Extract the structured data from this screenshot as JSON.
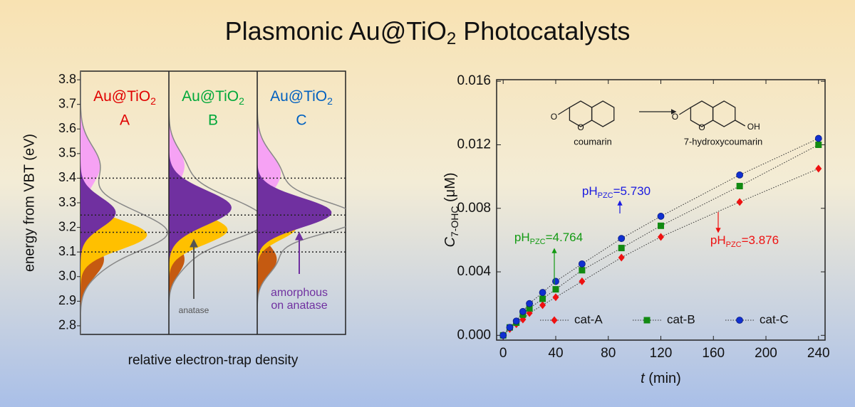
{
  "title": {
    "main": "Plasmonic Au@TiO",
    "sub": "2",
    "rest": " Photocatalysts"
  },
  "chart_data": [
    {
      "type": "density",
      "ylabel": "energy from VBT (eV)",
      "xlabel": "relative electron-trap density",
      "ylim": [
        2.765,
        3.835
      ],
      "yticks": [
        2.8,
        2.9,
        {
          "value": 3,
          "label": "3.0"
        },
        3.1,
        3.2,
        3.3,
        3.4,
        3.5,
        3.6,
        3.7,
        3.8
      ],
      "reference_lines": [
        3.1,
        3.18,
        3.25,
        3.4
      ],
      "panels": [
        {
          "label": {
            "main": "Au@TiO",
            "sub": "2"
          },
          "letter": "A",
          "color": "#e00000",
          "components": [
            {
              "color": "#f6a2f4",
              "center": 3.45,
              "width": 0.08,
              "amplitude": 0.25
            },
            {
              "color": "#c55a11",
              "center": 3.07,
              "width": 0.07,
              "amplitude": 0.3
            },
            {
              "color": "#ffc000",
              "center": 3.17,
              "width": 0.06,
              "amplitude": 0.85
            },
            {
              "color": "#7030a0",
              "center": 3.26,
              "width": 0.06,
              "amplitude": 0.45
            }
          ]
        },
        {
          "label": {
            "main": "Au@TiO",
            "sub": "2"
          },
          "letter": "B",
          "color": "#00a83a",
          "components": [
            {
              "color": "#f6a2f4",
              "center": 3.45,
              "width": 0.07,
              "amplitude": 0.2
            },
            {
              "color": "#c55a11",
              "center": 3.07,
              "width": 0.06,
              "amplitude": 0.2
            },
            {
              "color": "#ffc000",
              "center": 3.19,
              "width": 0.06,
              "amplitude": 0.75
            },
            {
              "color": "#7030a0",
              "center": 3.28,
              "width": 0.07,
              "amplitude": 0.8
            }
          ]
        },
        {
          "label": {
            "main": "Au@TiO",
            "sub": "2"
          },
          "letter": "C",
          "color": "#0060c0",
          "components": [
            {
              "color": "#f6a2f4",
              "center": 3.42,
              "width": 0.08,
              "amplitude": 0.3
            },
            {
              "color": "#c55a11",
              "center": 3.07,
              "width": 0.06,
              "amplitude": 0.25
            },
            {
              "color": "#ffc000",
              "center": 3.2,
              "width": 0.05,
              "amplitude": 0.5
            },
            {
              "color": "#7030a0",
              "center": 3.26,
              "width": 0.06,
              "amplitude": 0.95
            }
          ]
        }
      ],
      "annotations": [
        {
          "lines": [
            "anatase"
          ],
          "color": "#555555"
        },
        {
          "lines": [
            "amorphous",
            "on anatase"
          ],
          "color": "#7030a0"
        }
      ]
    },
    {
      "type": "line",
      "xlabel": {
        "var": "t",
        "rest": " (min)"
      },
      "ylabel": {
        "var": "C",
        "sub": "7-OHC",
        "rest": " (μM)"
      },
      "x": [
        0,
        5,
        10,
        15,
        20,
        30,
        40,
        60,
        90,
        120,
        180,
        240
      ],
      "xlim": [
        -5,
        245
      ],
      "xticks": [
        0,
        40,
        80,
        120,
        160,
        200,
        240
      ],
      "ylim": [
        -0.0003,
        0.0161
      ],
      "yticks": [
        {
          "value": 0,
          "label": "0.000"
        },
        {
          "value": 0.004,
          "label": "0.004"
        },
        {
          "value": 0.008,
          "label": "0.008"
        },
        {
          "value": 0.012,
          "label": "0.012"
        },
        {
          "value": 0.016,
          "label": "0.016"
        }
      ],
      "series": [
        {
          "name": "cat-A",
          "color": "#ee1111",
          "marker": "diamond",
          "values": [
            0,
            0.0004,
            0.0007,
            0.001,
            0.0014,
            0.0019,
            0.0024,
            0.0034,
            0.0049,
            0.0062,
            0.0084,
            0.0105
          ]
        },
        {
          "name": "cat-B",
          "color": "#128a12",
          "marker": "square",
          "values": [
            0,
            0.0005,
            0.0008,
            0.0013,
            0.0017,
            0.0023,
            0.0029,
            0.0041,
            0.0055,
            0.0069,
            0.0094,
            0.012
          ]
        },
        {
          "name": "cat-C",
          "color": "#1030d0",
          "marker": "circle",
          "values": [
            0,
            0.0005,
            0.0009,
            0.0015,
            0.002,
            0.0027,
            0.0034,
            0.0045,
            0.0061,
            0.0075,
            0.0101,
            0.0124
          ]
        }
      ],
      "annotations": [
        {
          "main": "pH",
          "sub": "PZC",
          "rest": "=5.730",
          "color": "#1a1ae0"
        },
        {
          "main": "pH",
          "sub": "PZC",
          "rest": "=4.764",
          "color": "#129a12"
        },
        {
          "main": "pH",
          "sub": "PZC",
          "rest": "=3.876",
          "color": "#ee1111"
        }
      ],
      "scheme": {
        "reactant": "coumarin",
        "product": "7-hydroxycoumarin",
        "atoms": [
          "O",
          "O",
          "O",
          "O",
          "OH"
        ]
      }
    }
  ]
}
